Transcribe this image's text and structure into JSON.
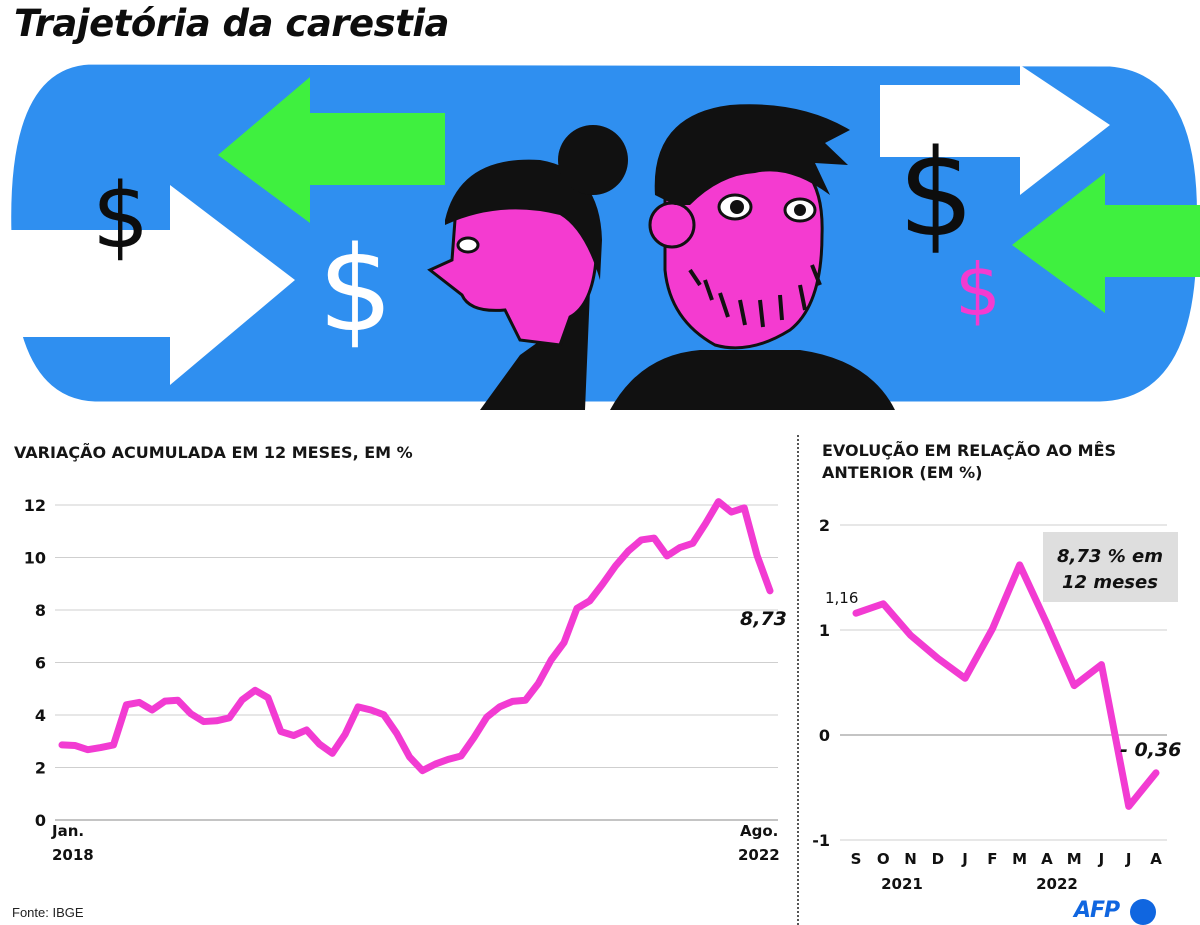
{
  "page": {
    "title": "Trajetória da carestia",
    "source": "Fonte: IBGE",
    "brand": "AFP"
  },
  "illustration": {
    "background_color": "#2f8ff0",
    "accent_pink": "#f43bd0",
    "accent_green": "#3ff03f",
    "symbol": "$",
    "icons": [
      "dollar-icon",
      "arrow-right-icon",
      "arrow-left-icon",
      "woman-figure",
      "man-figure"
    ]
  },
  "chart_data": [
    {
      "type": "line",
      "subtitle": "VARIAÇÃO ACUMULADA EM 12 MESES, EM %",
      "x_start_label": [
        "Jan.",
        "2018"
      ],
      "x_end_label": [
        "Ago.",
        "2022"
      ],
      "ylim": [
        0,
        12
      ],
      "yticks": [
        0,
        2,
        4,
        6,
        8,
        10,
        12
      ],
      "grid": true,
      "color": "#f23bd2",
      "annotation": "8,73",
      "values": [
        2.86,
        2.84,
        2.68,
        2.76,
        2.86,
        4.39,
        4.48,
        4.19,
        4.53,
        4.56,
        4.05,
        3.75,
        3.78,
        3.89,
        4.58,
        4.94,
        4.66,
        3.37,
        3.22,
        3.43,
        2.89,
        2.54,
        3.27,
        4.31,
        4.19,
        4.01,
        3.3,
        2.4,
        1.88,
        2.13,
        2.31,
        2.44,
        3.14,
        3.92,
        4.31,
        4.52,
        4.56,
        5.2,
        6.1,
        6.76,
        8.06,
        8.35,
        8.99,
        9.68,
        10.25,
        10.67,
        10.74,
        10.06,
        10.38,
        10.54,
        11.3,
        12.13,
        11.73,
        11.89,
        10.07,
        8.73
      ],
      "value_units": "%"
    },
    {
      "type": "line",
      "subtitle": "EVOLUÇÃO EM RELAÇÃO AO MÊS ANTERIOR (EM %)",
      "categories": [
        "S",
        "O",
        "N",
        "D",
        "J",
        "F",
        "M",
        "A",
        "M",
        "J",
        "J",
        "A"
      ],
      "year_labels": [
        "2021",
        "2022"
      ],
      "ylim": [
        -1,
        2
      ],
      "yticks": [
        2,
        1,
        0,
        -1
      ],
      "grid": true,
      "color": "#f23bd2",
      "values": [
        1.16,
        1.25,
        0.95,
        0.73,
        0.54,
        1.01,
        1.62,
        1.06,
        0.47,
        0.67,
        -0.68,
        -0.36
      ],
      "first_label": "1,16",
      "last_label": "- 0,36",
      "callout": [
        "8,73 % em",
        "12 meses"
      ]
    }
  ]
}
